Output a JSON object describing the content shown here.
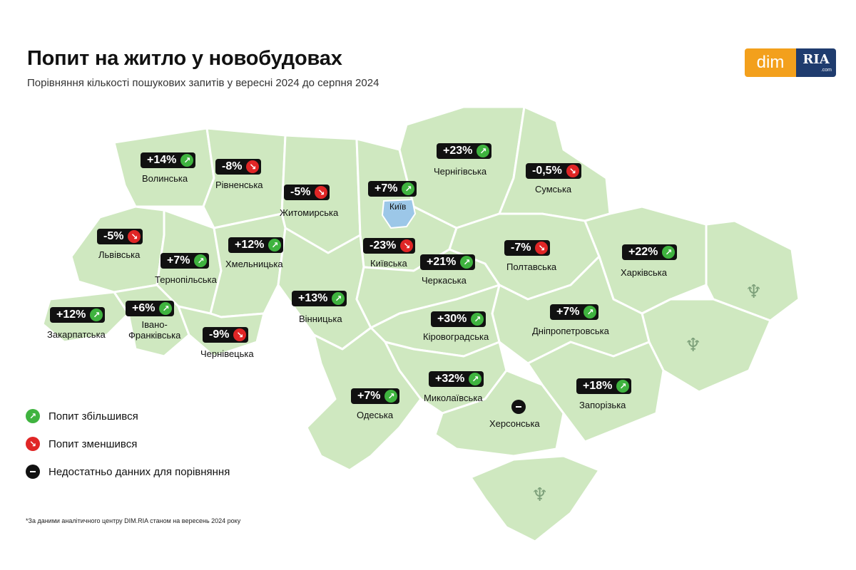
{
  "title": "Попит на житло у новобудовах",
  "subtitle": "Порівняння кількості пошукових запитів у вересні 2024 до серпня 2024",
  "logo": {
    "left_text": "dim",
    "right_text": "RIA",
    "right_small": ".com"
  },
  "colors": {
    "map_fill": "#cfe8c0",
    "map_border": "#ffffff",
    "kyiv_fill": "#9cc7e8",
    "up": "#3fb33f",
    "down": "#e02626",
    "badge_bg": "#111111",
    "logo_orange": "#f3a01c",
    "logo_navy": "#1f3c6e"
  },
  "regions": [
    {
      "id": "volynska",
      "name": "Волинська",
      "change": "+14%",
      "trend": "up"
    },
    {
      "id": "rivnenska",
      "name": "Рівненська",
      "change": "-8%",
      "trend": "down"
    },
    {
      "id": "zhytomyrska",
      "name": "Житомирська",
      "change": "-5%",
      "trend": "down"
    },
    {
      "id": "kyiv",
      "name": "Київ",
      "change": "+7%",
      "trend": "up"
    },
    {
      "id": "chernihivska",
      "name": "Чернігівська",
      "change": "+23%",
      "trend": "up"
    },
    {
      "id": "sumska",
      "name": "Сумська",
      "change": "-0,5%",
      "trend": "down"
    },
    {
      "id": "lvivska",
      "name": "Львівська",
      "change": "-5%",
      "trend": "down"
    },
    {
      "id": "khmelnytska",
      "name": "Хмельницька",
      "change": "+12%",
      "trend": "up"
    },
    {
      "id": "kyivska",
      "name": "Київська",
      "change": "-23%",
      "trend": "down"
    },
    {
      "id": "ternopilska",
      "name": "Тернопільська",
      "change": "+7%",
      "trend": "up"
    },
    {
      "id": "cherkaska",
      "name": "Черкаська",
      "change": "+21%",
      "trend": "up"
    },
    {
      "id": "poltavska",
      "name": "Полтавська",
      "change": "-7%",
      "trend": "down"
    },
    {
      "id": "kharkivska",
      "name": "Харківська",
      "change": "+22%",
      "trend": "up"
    },
    {
      "id": "vinnytska",
      "name": "Вінницька",
      "change": "+13%",
      "trend": "up"
    },
    {
      "id": "zakarpatska",
      "name": "Закарпатська",
      "change": "+12%",
      "trend": "up"
    },
    {
      "id": "ivano_frankivska",
      "name": "Івано-\nФранківська",
      "change": "+6%",
      "trend": "up"
    },
    {
      "id": "chernivetska",
      "name": "Чернівецька",
      "change": "-9%",
      "trend": "down"
    },
    {
      "id": "kirovohradska",
      "name": "Кіровоградська",
      "change": "+30%",
      "trend": "up"
    },
    {
      "id": "dnipropetrovska",
      "name": "Дніпропетровська",
      "change": "+7%",
      "trend": "up"
    },
    {
      "id": "mykolaivska",
      "name": "Миколаївська",
      "change": "+32%",
      "trend": "up"
    },
    {
      "id": "odeska",
      "name": "Одеська",
      "change": "+7%",
      "trend": "up"
    },
    {
      "id": "zaporizka",
      "name": "Запорізька",
      "change": "+18%",
      "trend": "up"
    },
    {
      "id": "khersonska",
      "name": "Херсонська",
      "change": null,
      "trend": "none"
    }
  ],
  "legend": [
    {
      "trend": "up",
      "label": "Попит збільшився"
    },
    {
      "trend": "down",
      "label": "Попит зменшився"
    },
    {
      "trend": "none",
      "label": "Недостатньо данних для порівняння"
    }
  ],
  "footnote": "*За даними аналітичного центру DIM.RIA станом на вересень 2024 року",
  "icons": {
    "up": "arrow-up-right-icon",
    "down": "arrow-down-right-icon",
    "none": "minus-icon",
    "occupied": "trident-icon"
  }
}
